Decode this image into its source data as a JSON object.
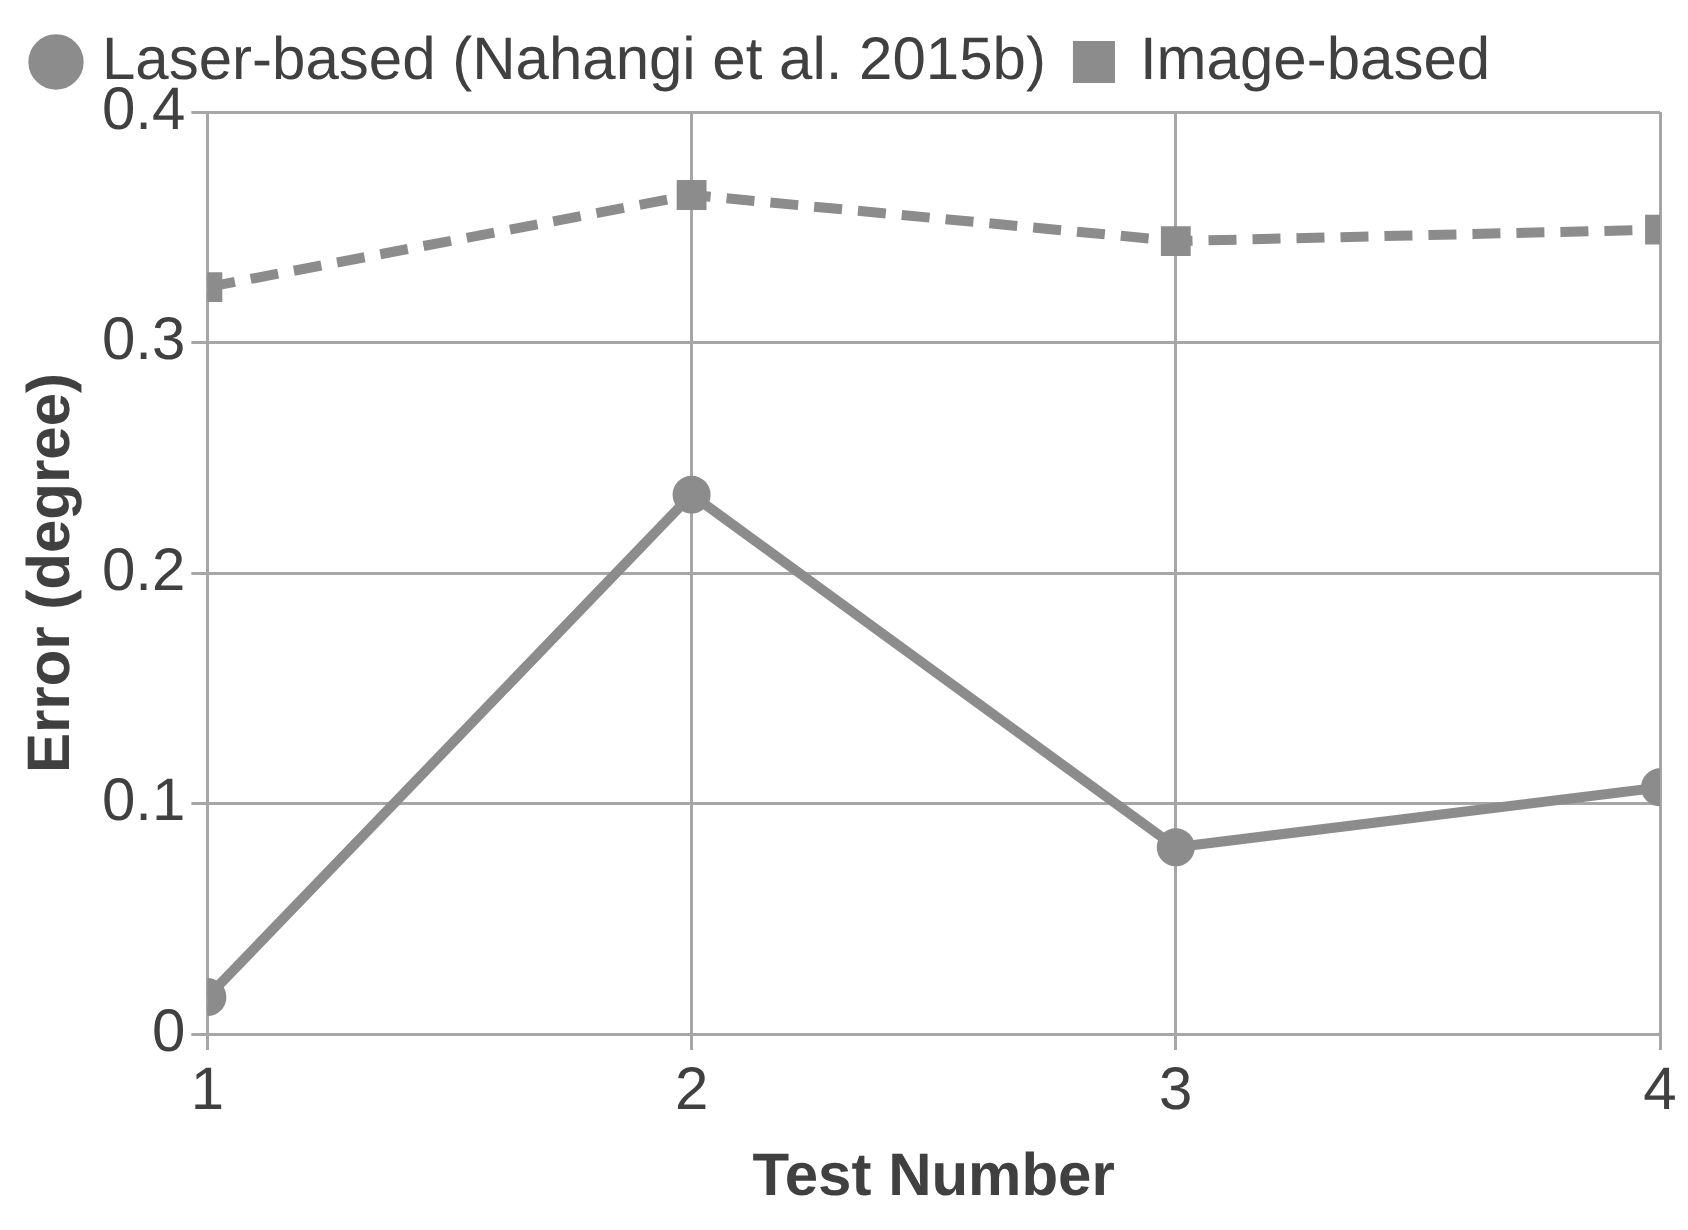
{
  "chart_data": {
    "type": "line",
    "xlabel": "Test Number",
    "ylabel": "Error (degree)",
    "x": [
      1,
      2,
      3,
      4
    ],
    "xlim": [
      1,
      4
    ],
    "xticks": [
      1,
      2,
      3,
      4
    ],
    "ylim": [
      0,
      0.4
    ],
    "yticks": [
      0,
      0.1,
      0.2,
      0.3,
      0.4
    ],
    "series": [
      {
        "name": "Laser-based (Nahangi et al. 2015b)",
        "color": "#8c8c8c",
        "values": [
          0.016,
          0.234,
          0.081,
          0.107
        ],
        "marker": "circle",
        "line_style": "solid"
      },
      {
        "name": "Image-based",
        "color": "#8c8c8c",
        "values": [
          0.324,
          0.364,
          0.344,
          0.349
        ],
        "marker": "square",
        "line_style": "dashed"
      }
    ],
    "grid": true,
    "legend": "top left"
  }
}
